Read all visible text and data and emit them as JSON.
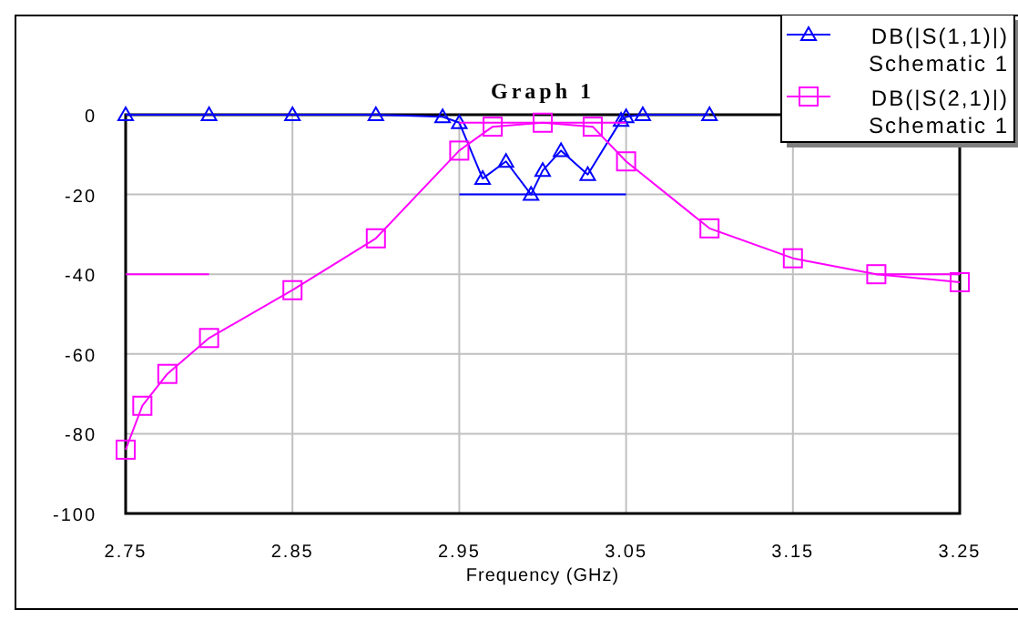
{
  "chart_data": {
    "type": "line",
    "title": "Graph 1",
    "xlabel": "Frequency (GHz)",
    "xlim": [
      2.75,
      3.25
    ],
    "xticks": [
      2.75,
      2.85,
      2.95,
      3.05,
      3.15,
      3.25
    ],
    "ylim": [
      -100,
      0
    ],
    "yticks": [
      -100,
      -80,
      -60,
      -40,
      -20,
      0
    ],
    "grid": true,
    "legend": "top right",
    "line_style": "solid",
    "series": [
      {
        "name": "DB(|S(1,1)|)\nSchematic 1",
        "color": "#0000ff",
        "marker": "triangle",
        "x": [
          2.75,
          2.8,
          2.85,
          2.9,
          2.94,
          2.95,
          2.964,
          2.978,
          2.993,
          3.0,
          3.011,
          3.027,
          3.047,
          3.05,
          3.06,
          3.1
        ],
        "values": [
          0,
          0,
          0,
          0,
          -0.5,
          -2,
          -16,
          -11.7,
          -20,
          -14,
          -9,
          -15,
          -1.4,
          -0.5,
          0,
          0
        ]
      },
      {
        "name": "DB(|S(2,1)|)\nSchematic 1",
        "color": "#ff00ff",
        "marker": "square",
        "x": [
          2.75,
          2.76,
          2.775,
          2.8,
          2.85,
          2.9,
          2.95,
          2.97,
          3.0,
          3.03,
          3.05,
          3.1,
          3.15,
          3.2,
          3.25
        ],
        "values": [
          -84,
          -73,
          -65,
          -56,
          -44,
          -31,
          -9,
          -3,
          -2,
          -3,
          -11.7,
          -28.5,
          -36,
          -40,
          -42
        ]
      },
      {
        "color": "#ff00ff",
        "marker": "none",
        "x": [
          2.75,
          2.8
        ],
        "values": [
          -40,
          -40
        ]
      },
      {
        "color": "#ff00ff",
        "marker": "none",
        "x": [
          2.95,
          3.05
        ],
        "values": [
          -2,
          -2
        ]
      },
      {
        "color": "#0000ff",
        "marker": "none",
        "x": [
          2.95,
          3.05
        ],
        "values": [
          -20,
          -20
        ]
      },
      {
        "color": "#ff00ff",
        "marker": "none",
        "x": [
          3.2,
          3.25
        ],
        "values": [
          -40,
          -40
        ]
      }
    ]
  }
}
